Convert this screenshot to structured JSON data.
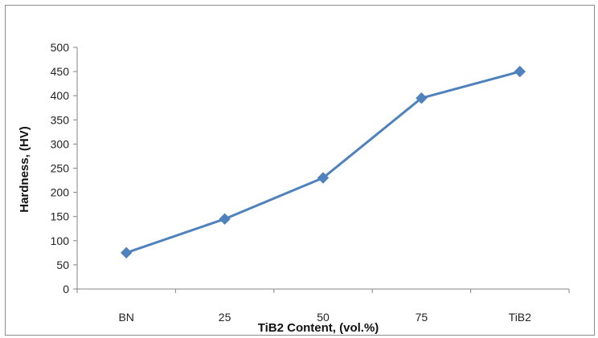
{
  "chart_data": {
    "type": "line",
    "categories": [
      "BN",
      "25",
      "50",
      "75",
      "TiB2"
    ],
    "series": [
      {
        "values": [
          75,
          145,
          230,
          395,
          450
        ]
      }
    ],
    "xlabel": "TiB2 Content, (vol.%)",
    "ylabel": "Hardness, (HV)",
    "ylim": [
      0,
      500
    ],
    "yticks": [
      "0",
      "50",
      "100",
      "150",
      "200",
      "250",
      "300",
      "350",
      "400",
      "450",
      "500"
    ],
    "grid": false,
    "legend": "none",
    "line_color": "#4f81bd",
    "marker": "diamond"
  }
}
